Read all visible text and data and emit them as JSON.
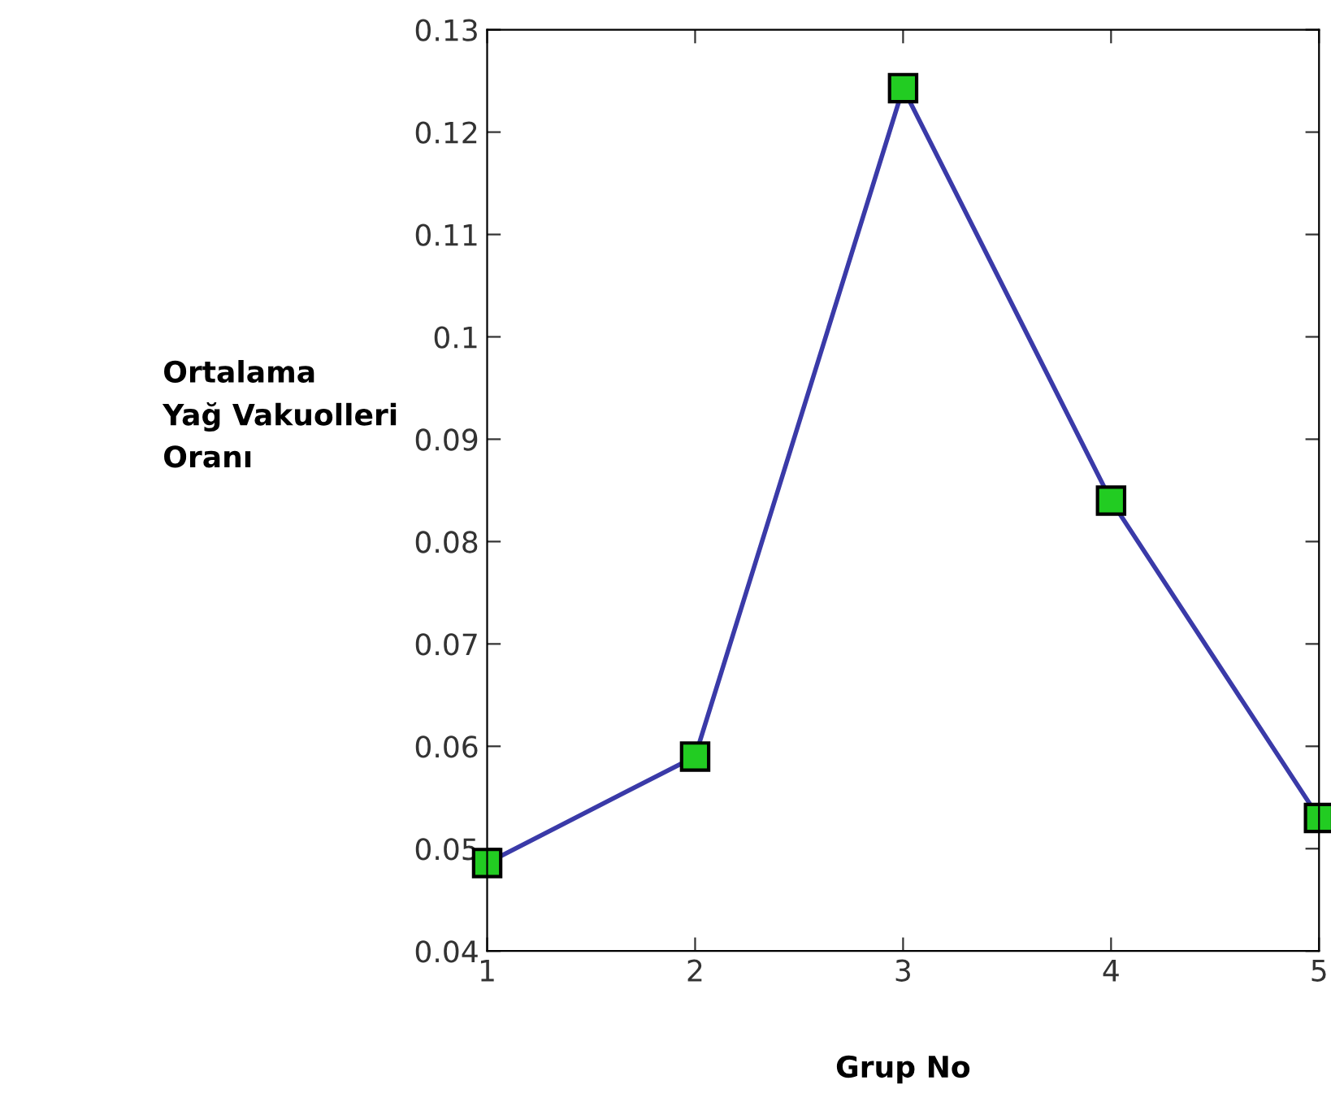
{
  "chart_data": {
    "type": "line",
    "xlabel": "Grup No",
    "ylabel": "Ortalama\nYağ Vakuolleri\nOranı",
    "x": [
      1,
      2,
      3,
      4,
      5
    ],
    "series": [
      {
        "color": "#3a3aa8",
        "values": [
          0.0486,
          0.059,
          0.1243,
          0.084,
          0.053
        ]
      }
    ],
    "xlim": [
      1,
      5
    ],
    "xticks": [
      1,
      2,
      3,
      4,
      5
    ],
    "ylim": [
      0.04,
      0.13
    ],
    "yticks": [
      0.04,
      0.05,
      0.06,
      0.07,
      0.08,
      0.09,
      0.1,
      0.11,
      0.12,
      0.13
    ],
    "marker": "square",
    "line_style": "solid",
    "grid": false
  }
}
